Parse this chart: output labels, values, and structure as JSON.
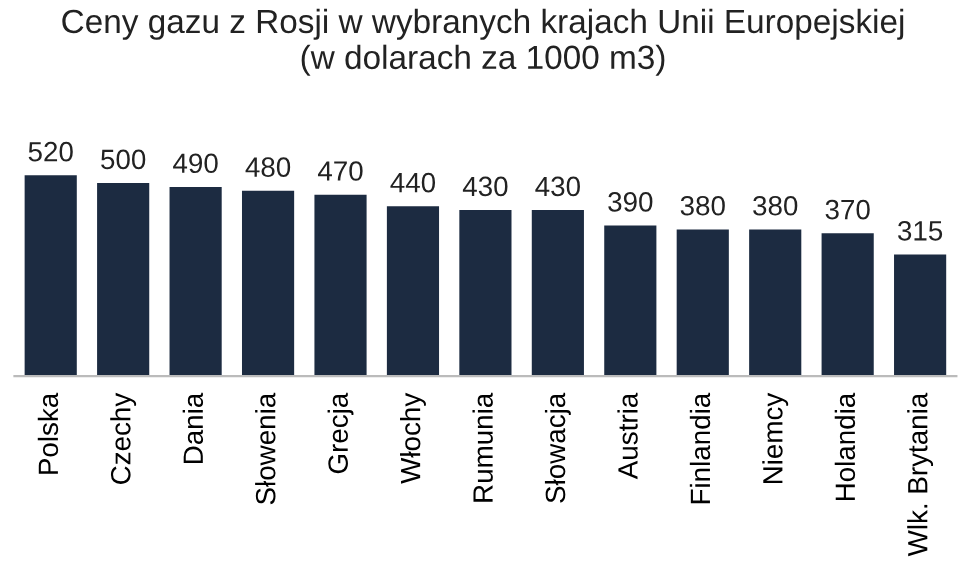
{
  "chart_data": {
    "type": "bar",
    "title": "Ceny gazu z Rosji w wybranych krajach Unii Europejskiej\n(w dolarach za 1000 m3)",
    "categories": [
      "Polska",
      "Czechy",
      "Dania",
      "Słowenia",
      "Grecja",
      "Włochy",
      "Rumunia",
      "Słowacja",
      "Austria",
      "Finlandia",
      "Niemcy",
      "Holandia",
      "Wlk. Brytania"
    ],
    "values": [
      520,
      500,
      490,
      480,
      470,
      440,
      430,
      430,
      390,
      380,
      380,
      370,
      315
    ],
    "color": "#1c2b41",
    "data_labels": true,
    "grid": false,
    "legend": false
  }
}
